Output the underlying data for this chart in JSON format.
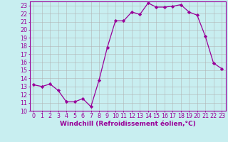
{
  "x": [
    0,
    1,
    2,
    3,
    4,
    5,
    6,
    7,
    8,
    9,
    10,
    11,
    12,
    13,
    14,
    15,
    16,
    17,
    18,
    19,
    20,
    21,
    22,
    23
  ],
  "y": [
    13.2,
    13.0,
    13.3,
    12.5,
    11.1,
    11.1,
    11.5,
    10.5,
    13.8,
    17.8,
    21.1,
    21.1,
    22.2,
    21.9,
    23.3,
    22.8,
    22.8,
    22.9,
    23.1,
    22.2,
    21.8,
    19.2,
    15.9,
    15.2
  ],
  "line_color": "#990099",
  "marker": "D",
  "marker_size": 2.2,
  "bg_color": "#c8eef0",
  "grid_color": "#b0b0b0",
  "xlabel": "Windchill (Refroidissement éolien,°C)",
  "ylim": [
    10,
    23.5
  ],
  "xlim": [
    -0.5,
    23.5
  ],
  "yticks": [
    10,
    11,
    12,
    13,
    14,
    15,
    16,
    17,
    18,
    19,
    20,
    21,
    22,
    23
  ],
  "xticks": [
    0,
    1,
    2,
    3,
    4,
    5,
    6,
    7,
    8,
    9,
    10,
    11,
    12,
    13,
    14,
    15,
    16,
    17,
    18,
    19,
    20,
    21,
    22,
    23
  ],
  "tick_color": "#990099",
  "label_fontsize": 6.5,
  "tick_fontsize": 5.8,
  "spine_color": "#990099"
}
